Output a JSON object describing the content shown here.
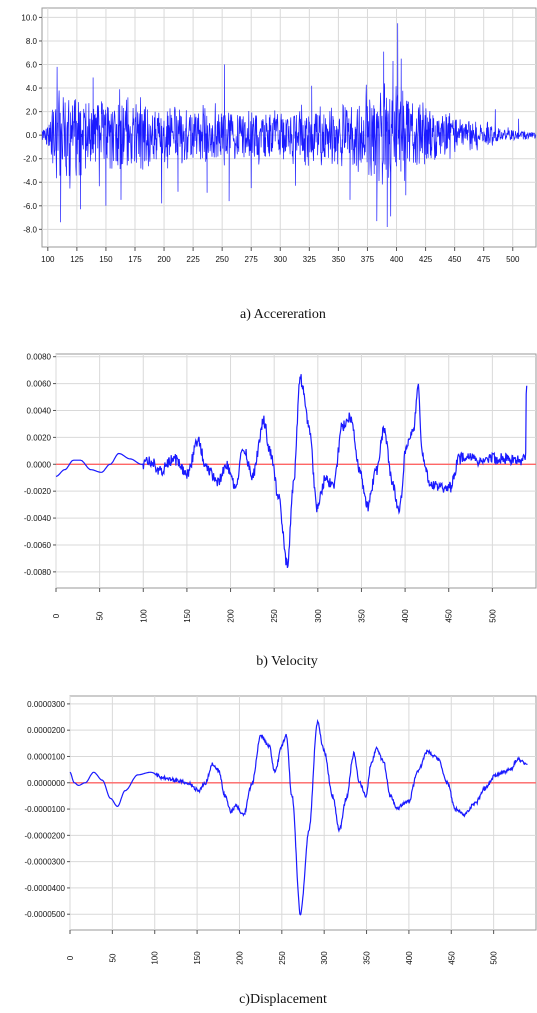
{
  "colors": {
    "signal": "#1a1aff",
    "zero_line": "#ff6666",
    "grid": "#d9d9d9",
    "frame": "#9a9a9a"
  },
  "chart_data": [
    {
      "type": "line",
      "caption": "a)   Accereration",
      "xlim": [
        95,
        520
      ],
      "ylim": [
        -9.5,
        10.8
      ],
      "x_ticks": [
        100,
        125,
        150,
        175,
        200,
        225,
        250,
        275,
        300,
        325,
        350,
        375,
        400,
        425,
        450,
        475,
        500
      ],
      "y_ticks": [
        {
          "v": 10,
          "label": "10.0"
        },
        {
          "v": 8,
          "label": "8.0"
        },
        {
          "v": 6,
          "label": "6.0"
        },
        {
          "v": 4,
          "label": "4.0"
        },
        {
          "v": 2,
          "label": "2.0"
        },
        {
          "v": 0,
          "label": "0.0"
        },
        {
          "v": -2,
          "label": "-2.0"
        },
        {
          "v": -4,
          "label": "-4.0"
        },
        {
          "v": -6,
          "label": "-6.0"
        },
        {
          "v": -8,
          "label": "-8.0"
        }
      ],
      "zero_line": false,
      "series": [
        {
          "kind": "noise",
          "envelope": [
            [
              95,
              0.5
            ],
            [
              100,
              1.0
            ],
            [
              104,
              3.0
            ],
            [
              108,
              4.6
            ],
            [
              115,
              4.2
            ],
            [
              135,
              3.8
            ],
            [
              160,
              3.5
            ],
            [
              175,
              3.3
            ],
            [
              200,
              3.0
            ],
            [
              220,
              2.8
            ],
            [
              245,
              3.2
            ],
            [
              255,
              2.5
            ],
            [
              280,
              2.4
            ],
            [
              300,
              2.6
            ],
            [
              330,
              2.8
            ],
            [
              355,
              3.0
            ],
            [
              370,
              3.4
            ],
            [
              385,
              4.2
            ],
            [
              398,
              5.0
            ],
            [
              408,
              4.6
            ],
            [
              420,
              3.4
            ],
            [
              440,
              2.3
            ],
            [
              460,
              1.7
            ],
            [
              480,
              1.1
            ],
            [
              495,
              0.7
            ],
            [
              505,
              0.5
            ],
            [
              520,
              0.3
            ]
          ],
          "peaks": [
            [
              108,
              5.8
            ],
            [
              111,
              -7.4
            ],
            [
              128,
              -6.3
            ],
            [
              139,
              4.9
            ],
            [
              150,
              -6.0
            ],
            [
              163,
              -5.5
            ],
            [
              198,
              -5.8
            ],
            [
              212,
              -4.8
            ],
            [
              237,
              -4.9
            ],
            [
              252,
              6.0
            ],
            [
              256,
              -5.6
            ],
            [
              275,
              -4.5
            ],
            [
              313,
              -4.3
            ],
            [
              327,
              4.2
            ],
            [
              360,
              -5.5
            ],
            [
              383,
              -7.3
            ],
            [
              389,
              7.1
            ],
            [
              392,
              -7.8
            ],
            [
              395,
              -6.9
            ],
            [
              397,
              6.3
            ],
            [
              401,
              9.5
            ],
            [
              404,
              6.5
            ],
            [
              408,
              -5.1
            ],
            [
              485,
              2.2
            ],
            [
              505,
              1.4
            ]
          ]
        }
      ]
    },
    {
      "type": "line",
      "caption": "b) Velocity",
      "xlim": [
        0,
        550
      ],
      "ylim": [
        -0.0092,
        0.0082
      ],
      "x_ticks": [
        0,
        50,
        100,
        150,
        200,
        250,
        300,
        350,
        400,
        450,
        500
      ],
      "y_ticks": [
        {
          "v": 0.008,
          "label": "0.0080"
        },
        {
          "v": 0.006,
          "label": "0.0060"
        },
        {
          "v": 0.004,
          "label": "0.0040"
        },
        {
          "v": 0.002,
          "label": "0.0020"
        },
        {
          "v": 0,
          "label": "0.0000"
        },
        {
          "v": -0.002,
          "label": "-0.0020"
        },
        {
          "v": -0.004,
          "label": "-0.0040"
        },
        {
          "v": -0.006,
          "label": "-0.0060"
        },
        {
          "v": -0.008,
          "label": "-0.0080"
        }
      ],
      "zero_line": true,
      "series": [
        {
          "kind": "smooth",
          "noise_amp": 0.00042,
          "noise_from": 100,
          "points": [
            [
              0,
              -0.0009
            ],
            [
              10,
              -0.0004
            ],
            [
              20,
              0.0003
            ],
            [
              28,
              0.0003
            ],
            [
              40,
              -0.0004
            ],
            [
              52,
              -0.0006
            ],
            [
              62,
              0.0
            ],
            [
              72,
              0.0008
            ],
            [
              85,
              0.0004
            ],
            [
              98,
              0.0
            ],
            [
              108,
              0.0002
            ],
            [
              120,
              -0.0005
            ],
            [
              135,
              0.0004
            ],
            [
              150,
              -0.0008
            ],
            [
              163,
              0.0018
            ],
            [
              172,
              -0.0002
            ],
            [
              185,
              -0.0014
            ],
            [
              195,
              0.0
            ],
            [
              205,
              -0.0016
            ],
            [
              215,
              0.0011
            ],
            [
              225,
              -0.0009
            ],
            [
              238,
              0.0032
            ],
            [
              246,
              0.0008
            ],
            [
              255,
              -0.0025
            ],
            [
              265,
              -0.0075
            ],
            [
              272,
              -0.0015
            ],
            [
              280,
              0.0064
            ],
            [
              290,
              0.0028
            ],
            [
              299,
              -0.0032
            ],
            [
              308,
              -0.0012
            ],
            [
              318,
              -0.0015
            ],
            [
              328,
              0.0028
            ],
            [
              338,
              0.0035
            ],
            [
              348,
              -0.0005
            ],
            [
              357,
              -0.0032
            ],
            [
              367,
              -0.0005
            ],
            [
              376,
              0.0026
            ],
            [
              385,
              -0.0012
            ],
            [
              393,
              -0.0035
            ],
            [
              402,
              0.0016
            ],
            [
              410,
              0.0028
            ],
            [
              415,
              0.0058
            ],
            [
              420,
              0.0004
            ],
            [
              430,
              -0.0015
            ],
            [
              440,
              -0.0018
            ],
            [
              452,
              -0.0017
            ],
            [
              462,
              0.0004
            ],
            [
              472,
              0.0006
            ],
            [
              485,
              0.0002
            ],
            [
              495,
              0.0004
            ],
            [
              505,
              0.0004
            ],
            [
              515,
              0.0004
            ],
            [
              538,
              0.0003
            ],
            [
              539,
              0.0058
            ],
            [
              540,
              0.0058
            ]
          ]
        }
      ]
    },
    {
      "type": "line",
      "caption": "c)Displacement",
      "xlim": [
        0,
        550
      ],
      "ylim": [
        -5.6e-05,
        3.3e-05
      ],
      "x_ticks": [
        0,
        50,
        100,
        150,
        200,
        250,
        300,
        350,
        400,
        450,
        500
      ],
      "y_ticks": [
        {
          "v": 3e-05,
          "label": "0.0000300"
        },
        {
          "v": 2e-05,
          "label": "0.0000200"
        },
        {
          "v": 1e-05,
          "label": "0.0000100"
        },
        {
          "v": 0,
          "label": "0.0000000"
        },
        {
          "v": -1e-05,
          "label": "-0.0000100"
        },
        {
          "v": -2e-05,
          "label": "-0.0000200"
        },
        {
          "v": -3e-05,
          "label": "-0.0000300"
        },
        {
          "v": -4e-05,
          "label": "-0.0000400"
        },
        {
          "v": -5e-05,
          "label": "-0.0000500"
        }
      ],
      "zero_line": true,
      "series": [
        {
          "kind": "smooth",
          "noise_amp": 7e-07,
          "noise_from": 100,
          "points": [
            [
              0,
              4e-06
            ],
            [
              5,
              0.0
            ],
            [
              10,
              -1e-06
            ],
            [
              18,
              0.0
            ],
            [
              28,
              4e-06
            ],
            [
              38,
              1e-06
            ],
            [
              48,
              -6e-06
            ],
            [
              56,
              -9e-06
            ],
            [
              65,
              -3e-06
            ],
            [
              80,
              3e-06
            ],
            [
              95,
              4e-06
            ],
            [
              110,
              2e-06
            ],
            [
              125,
              1e-06
            ],
            [
              140,
              0.0
            ],
            [
              152,
              -3e-06
            ],
            [
              160,
              0.0
            ],
            [
              168,
              7e-06
            ],
            [
              175,
              5e-06
            ],
            [
              183,
              -5e-06
            ],
            [
              190,
              -1.1e-05
            ],
            [
              196,
              -9e-06
            ],
            [
              205,
              -1.2e-05
            ],
            [
              215,
              0.0
            ],
            [
              225,
              1.8e-05
            ],
            [
              235,
              1.4e-05
            ],
            [
              242,
              4e-06
            ],
            [
              250,
              1.4e-05
            ],
            [
              255,
              1.8e-05
            ],
            [
              262,
              -5e-06
            ],
            [
              272,
              -5e-05
            ],
            [
              282,
              -1.8e-05
            ],
            [
              292,
              2.3e-05
            ],
            [
              300,
              1.2e-05
            ],
            [
              310,
              -5e-06
            ],
            [
              318,
              -1.8e-05
            ],
            [
              326,
              -6e-06
            ],
            [
              335,
              1.1e-05
            ],
            [
              342,
              0.0
            ],
            [
              349,
              -5e-06
            ],
            [
              356,
              8e-06
            ],
            [
              362,
              1.3e-05
            ],
            [
              370,
              8e-06
            ],
            [
              378,
              -5e-06
            ],
            [
              386,
              -1e-05
            ],
            [
              393,
              -8e-06
            ],
            [
              400,
              -7e-06
            ],
            [
              410,
              4e-06
            ],
            [
              422,
              1.2e-05
            ],
            [
              435,
              9e-06
            ],
            [
              445,
              0.0
            ],
            [
              455,
              -1e-05
            ],
            [
              465,
              -1.2e-05
            ],
            [
              478,
              -8e-06
            ],
            [
              490,
              -2e-06
            ],
            [
              502,
              3e-06
            ],
            [
              510,
              4e-06
            ],
            [
              520,
              5e-06
            ],
            [
              528,
              9e-06
            ],
            [
              540,
              7e-06
            ]
          ]
        }
      ]
    }
  ]
}
